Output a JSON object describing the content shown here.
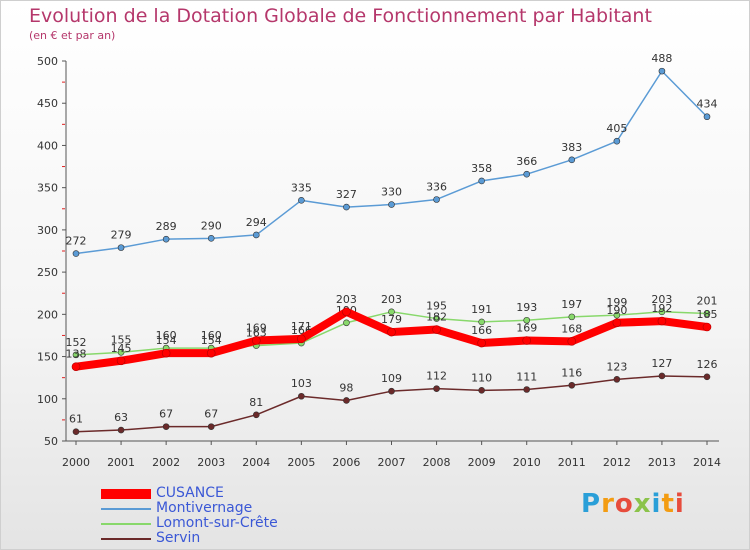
{
  "chart_data": {
    "type": "line",
    "title": "Evolution de la Dotation Globale de Fonctionnement par Habitant",
    "subtitle": "(en € et par an)",
    "x": [
      "2000",
      "2001",
      "2002",
      "2003",
      "2004",
      "2005",
      "2006",
      "2007",
      "2008",
      "2009",
      "2010",
      "2011",
      "2012",
      "2013",
      "2014"
    ],
    "ylim": [
      50,
      500
    ],
    "yticks": [
      50,
      100,
      150,
      200,
      250,
      300,
      350,
      400,
      450,
      500
    ],
    "grid": false,
    "legend": "bottom-left",
    "series": [
      {
        "name": "Montivernage",
        "color": "#5b9bd5",
        "values": [
          272,
          279,
          289,
          290,
          294,
          335,
          327,
          330,
          336,
          358,
          366,
          383,
          405,
          488,
          434
        ]
      },
      {
        "name": "Lomont-sur-Crête",
        "color": "#88d86b",
        "values": [
          152,
          155,
          160,
          160,
          163,
          166,
          190,
          203,
          195,
          191,
          193,
          197,
          199,
          203,
          201
        ]
      },
      {
        "name": "Servin",
        "color": "#6b2a2a",
        "values": [
          61,
          63,
          67,
          67,
          81,
          103,
          98,
          109,
          112,
          110,
          111,
          116,
          123,
          127,
          126
        ]
      },
      {
        "name": "CUSANCE",
        "color": "#ff0000",
        "values": [
          138,
          145,
          154,
          154,
          169,
          171,
          203,
          179,
          182,
          166,
          169,
          168,
          190,
          192,
          185
        ]
      }
    ]
  },
  "legend_order": [
    "CUSANCE",
    "Montivernage",
    "Lomont-sur-Crête",
    "Servin"
  ],
  "logo": {
    "text": "Proxiti"
  }
}
